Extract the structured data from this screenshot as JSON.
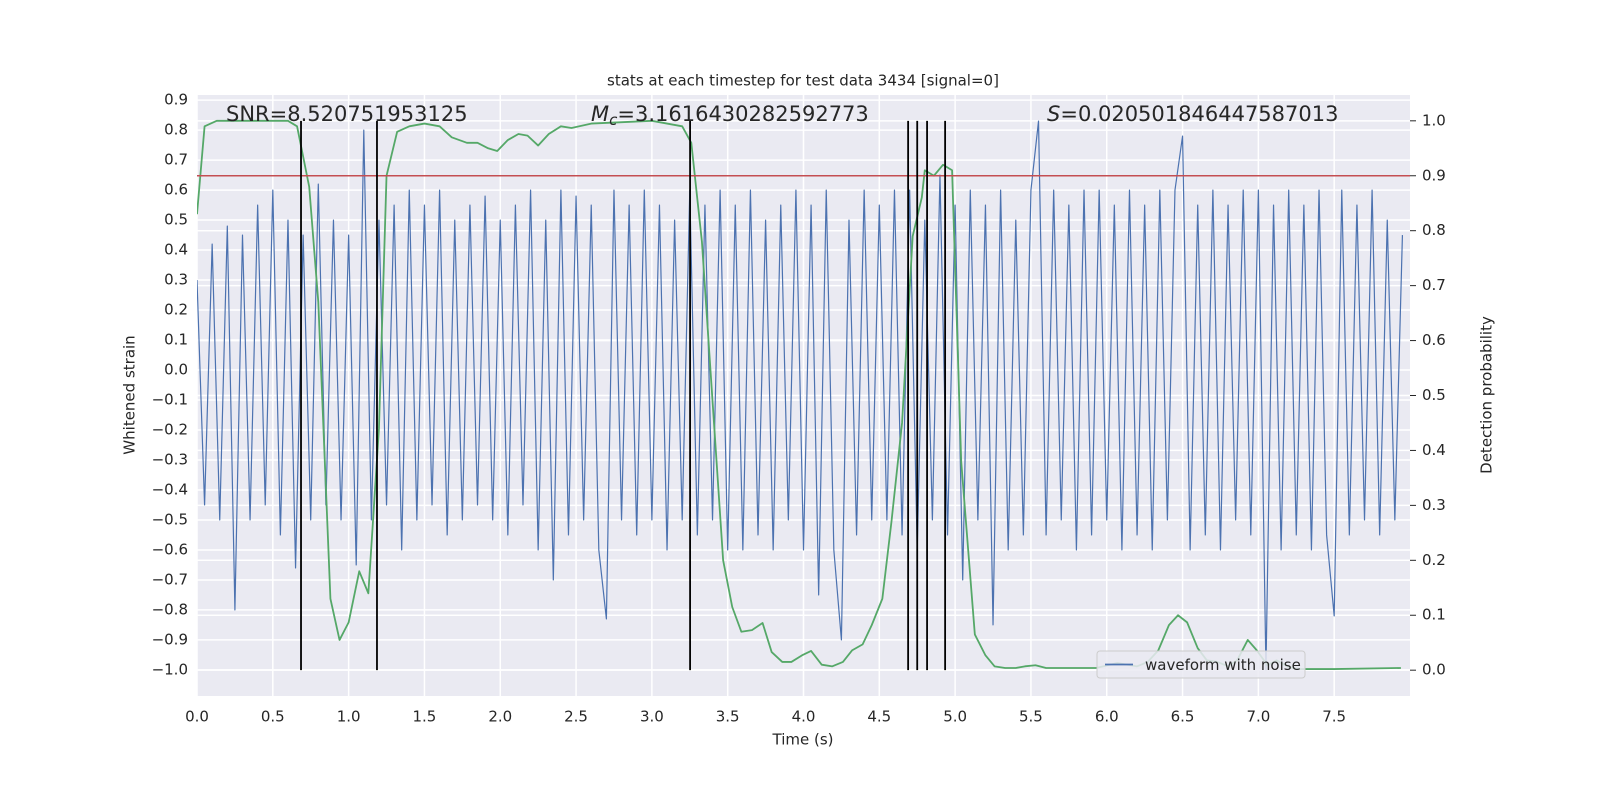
{
  "chart_data": {
    "type": "line",
    "title": "stats at each timestep for test data 3434 [signal=0]",
    "xlabel": "Time (s)",
    "ylabel": "Whitened strain",
    "y2label": "Detection probability",
    "xlim": [
      0,
      8
    ],
    "xticks": [
      {
        "value": 0,
        "label": "0.0"
      },
      0.5,
      {
        "value": 1,
        "label": "1.0"
      },
      1.5,
      {
        "value": 2,
        "label": "2.0"
      },
      2.5,
      {
        "value": 3,
        "label": "3.0"
      },
      3.5,
      {
        "value": 4,
        "label": "4.0"
      },
      4.5,
      {
        "value": 5,
        "label": "5.0"
      },
      5.5,
      {
        "value": 6,
        "label": "6.0"
      },
      6.5,
      {
        "value": 7,
        "label": "7.0"
      },
      7.5
    ],
    "ylim": [
      -1.087,
      0.917
    ],
    "yticks": [
      {
        "value": -1,
        "label": "−1.0"
      },
      {
        "value": -0.9,
        "label": "−0.9"
      },
      {
        "value": -0.8,
        "label": "−0.8"
      },
      {
        "value": -0.7,
        "label": "−0.7"
      },
      {
        "value": -0.6,
        "label": "−0.6"
      },
      {
        "value": -0.5,
        "label": "−0.5"
      },
      {
        "value": -0.4,
        "label": "−0.4"
      },
      {
        "value": -0.3,
        "label": "−0.3"
      },
      {
        "value": -0.2,
        "label": "−0.2"
      },
      {
        "value": -0.1,
        "label": "−0.1"
      },
      {
        "value": 0,
        "label": "0.0"
      },
      0.1,
      0.2,
      0.3,
      0.4,
      0.5,
      0.6,
      0.7,
      0.8,
      0.9
    ],
    "y2lim": [
      -0.047,
      1.047
    ],
    "y2ticks": [
      {
        "value": 0,
        "label": "0.0"
      },
      0.1,
      0.2,
      0.3,
      0.4,
      0.5,
      0.6,
      0.7,
      0.8,
      0.9,
      {
        "value": 1,
        "label": "1.0"
      }
    ],
    "grid": true,
    "legend": "lower right",
    "annotations": [
      {
        "text": "SNR=8.520751953125"
      },
      {
        "symbol": "M",
        "subscript": "c",
        "text": "=3.1616430282592773"
      },
      {
        "symbol": "S",
        "text": "=0.020501846447587013"
      }
    ],
    "series": [
      {
        "name": "waveform with noise",
        "color": "#4c72b0",
        "x": [
          0,
          0.05,
          0.1,
          0.15,
          0.2,
          0.25,
          0.3,
          0.35,
          0.4,
          0.45,
          0.5,
          0.55,
          0.6,
          0.65,
          0.7,
          0.75,
          0.8,
          0.85,
          0.9,
          0.95,
          1,
          1.05,
          1.1,
          1.15,
          1.2,
          1.25,
          1.3,
          1.35,
          1.4,
          1.45,
          1.5,
          1.55,
          1.6,
          1.65,
          1.7,
          1.75,
          1.8,
          1.85,
          1.9,
          1.95,
          2,
          2.05,
          2.1,
          2.15,
          2.2,
          2.25,
          2.3,
          2.35,
          2.4,
          2.45,
          2.5,
          2.55,
          2.6,
          2.65,
          2.7,
          2.75,
          2.8,
          2.85,
          2.9,
          2.95,
          3,
          3.05,
          3.1,
          3.15,
          3.2,
          3.25,
          3.3,
          3.35,
          3.4,
          3.45,
          3.5,
          3.55,
          3.6,
          3.65,
          3.7,
          3.75,
          3.8,
          3.85,
          3.9,
          3.95,
          4,
          4.05,
          4.1,
          4.15,
          4.2,
          4.25,
          4.3,
          4.35,
          4.4,
          4.45,
          4.5,
          4.55,
          4.6,
          4.65,
          4.7,
          4.75,
          4.8,
          4.85,
          4.9,
          4.95,
          5,
          5.05,
          5.1,
          5.15,
          5.2,
          5.25,
          5.3,
          5.35,
          5.4,
          5.45,
          5.5,
          5.55,
          5.6,
          5.65,
          5.7,
          5.75,
          5.8,
          5.85,
          5.9,
          5.95,
          6,
          6.05,
          6.1,
          6.15,
          6.2,
          6.25,
          6.3,
          6.35,
          6.4,
          6.45,
          6.5,
          6.55,
          6.6,
          6.65,
          6.7,
          6.75,
          6.8,
          6.85,
          6.9,
          6.95,
          7,
          7.05,
          7.1,
          7.15,
          7.2,
          7.25,
          7.3,
          7.35,
          7.4,
          7.45,
          7.5,
          7.55,
          7.6,
          7.65,
          7.7,
          7.75,
          7.8,
          7.85,
          7.9,
          7.95
        ],
        "values": [
          0.3,
          -0.45,
          0.42,
          -0.5,
          0.48,
          -0.8,
          0.45,
          -0.5,
          0.55,
          -0.45,
          0.6,
          -0.55,
          0.5,
          -0.66,
          0.45,
          -0.5,
          0.62,
          -0.45,
          0.5,
          -0.5,
          0.45,
          -0.65,
          0.8,
          -0.5,
          0.5,
          -0.45,
          0.55,
          -0.6,
          0.6,
          -0.5,
          0.55,
          -0.45,
          0.6,
          -0.55,
          0.5,
          -0.5,
          0.55,
          -0.45,
          0.58,
          -0.5,
          0.5,
          -0.55,
          0.55,
          -0.45,
          0.6,
          -0.6,
          0.5,
          -0.7,
          0.6,
          -0.55,
          0.58,
          -0.5,
          0.55,
          -0.6,
          -0.83,
          0.6,
          -0.5,
          0.55,
          -0.55,
          0.6,
          -0.5,
          0.55,
          -0.6,
          0.5,
          -0.5,
          0.6,
          -0.55,
          0.55,
          -0.5,
          0.6,
          -0.6,
          0.55,
          -0.6,
          0.6,
          -0.55,
          0.5,
          -0.6,
          0.55,
          -0.5,
          0.6,
          -0.6,
          0.55,
          -0.75,
          0.6,
          -0.6,
          -0.9,
          0.5,
          -0.55,
          0.6,
          -0.5,
          0.55,
          -0.5,
          0.6,
          -0.55,
          0.6,
          -0.6,
          0.5,
          -0.5,
          0.65,
          -0.55,
          0.55,
          -0.7,
          0.6,
          -0.5,
          0.55,
          -0.85,
          0.6,
          -0.6,
          0.5,
          -0.55,
          0.6,
          0.83,
          -0.55,
          0.6,
          -0.5,
          0.55,
          -0.6,
          0.6,
          -0.55,
          0.6,
          -0.5,
          0.55,
          -0.6,
          0.6,
          -0.55,
          0.55,
          -0.6,
          0.6,
          -0.5,
          0.6,
          0.78,
          -0.6,
          0.55,
          -0.55,
          0.6,
          -0.6,
          0.55,
          -0.5,
          0.6,
          -0.55,
          0.6,
          -1.0,
          0.55,
          -0.6,
          0.6,
          -0.55,
          0.55,
          -0.6,
          0.6,
          -0.55,
          -0.82,
          0.6,
          -0.55,
          0.55,
          -0.5,
          0.6,
          -0.55,
          0.5,
          -0.5,
          0.45
        ]
      },
      {
        "color": "#55a868",
        "axis": "y2",
        "x": [
          0,
          0.05,
          0.13,
          0.6,
          0.66,
          0.74,
          0.8,
          0.88,
          0.94,
          1,
          1.07,
          1.13,
          1.2,
          1.25,
          1.32,
          1.4,
          1.5,
          1.6,
          1.68,
          1.78,
          1.85,
          1.92,
          1.98,
          2.05,
          2.12,
          2.18,
          2.25,
          2.32,
          2.4,
          2.47,
          2.6,
          3,
          3.2,
          3.26,
          3.33,
          3.4,
          3.47,
          3.53,
          3.59,
          3.66,
          3.73,
          3.79,
          3.86,
          3.92,
          3.99,
          4.05,
          4.12,
          4.19,
          4.26,
          4.32,
          4.39,
          4.45,
          4.52,
          4.58,
          4.65,
          4.72,
          4.78,
          4.8,
          4.86,
          4.92,
          4.98,
          5.04,
          5.13,
          5.2,
          5.26,
          5.33,
          5.4,
          5.46,
          5.53,
          5.6,
          5.8,
          5.93,
          6.07,
          6.2,
          6.27,
          6.34,
          6.41,
          6.47,
          6.53,
          6.6,
          6.66,
          6.73,
          6.8,
          6.86,
          6.93,
          6.99,
          7.06,
          7.12,
          7.19,
          7.26,
          7.5,
          7.94
        ],
        "values": [
          0.83,
          0.99,
          1.0,
          1.0,
          0.99,
          0.88,
          0.67,
          0.13,
          0.055,
          0.087,
          0.18,
          0.14,
          0.44,
          0.9,
          0.98,
          0.99,
          0.995,
          0.99,
          0.97,
          0.96,
          0.96,
          0.95,
          0.945,
          0.965,
          0.976,
          0.973,
          0.955,
          0.976,
          0.99,
          0.987,
          0.995,
          1.0,
          0.99,
          0.96,
          0.78,
          0.49,
          0.2,
          0.115,
          0.07,
          0.073,
          0.086,
          0.033,
          0.015,
          0.015,
          0.027,
          0.035,
          0.01,
          0.007,
          0.015,
          0.036,
          0.047,
          0.082,
          0.13,
          0.27,
          0.45,
          0.79,
          0.86,
          0.91,
          0.9,
          0.92,
          0.91,
          0.38,
          0.065,
          0.027,
          0.007,
          0.004,
          0.004,
          0.007,
          0.009,
          0.004,
          0.004,
          0.004,
          0.013,
          0.007,
          0.015,
          0.036,
          0.082,
          0.1,
          0.087,
          0.04,
          0.018,
          0.015,
          0.007,
          0.018,
          0.055,
          0.036,
          0.009,
          0.018,
          0.007,
          0.002,
          0.002,
          0.004
        ]
      }
    ],
    "hlines": [
      {
        "value": 0.9,
        "axis": "y2",
        "color": "#c44e52"
      }
    ],
    "vlines": {
      "x": [
        0.686,
        1.187,
        3.252,
        4.69,
        4.75,
        4.815,
        4.934
      ],
      "y2range": [
        0,
        1
      ],
      "color": "#000000"
    }
  }
}
